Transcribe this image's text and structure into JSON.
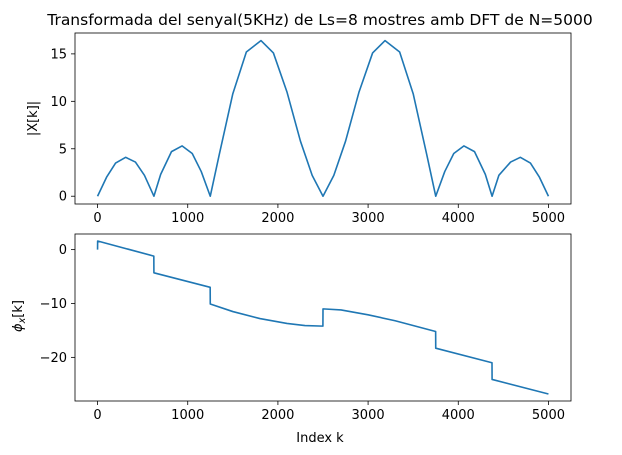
{
  "chart_data": [
    {
      "type": "line",
      "title": "Transformada del senyal(5KHz) de Ls=8 mostres amb DFT de N=5000",
      "xlabel": "",
      "ylabel": "|X[k]|",
      "xlim": [
        -250,
        5250
      ],
      "ylim": [
        -0.82,
        17.2
      ],
      "xticks": [
        0,
        1000,
        2000,
        3000,
        4000,
        5000
      ],
      "yticks": [
        0,
        5,
        10,
        15
      ],
      "grid": false,
      "color": "#1f77b4",
      "series": [
        {
          "x": [
            0,
            100,
            200,
            312,
            420,
            520,
            625,
            700,
            820,
            937,
            1050,
            1150,
            1250,
            1350,
            1500,
            1650,
            1812,
            1950,
            2100,
            2250,
            2380,
            2500,
            2620,
            2750,
            2900,
            3050,
            3188,
            3350,
            3500,
            3650,
            3750,
            3850,
            3950,
            4063,
            4180,
            4300,
            4375,
            4450,
            4580,
            4688,
            4800,
            4900,
            5000
          ],
          "y": [
            0.0,
            2.0,
            3.5,
            4.1,
            3.6,
            2.2,
            0.0,
            2.3,
            4.7,
            5.3,
            4.5,
            2.6,
            0.0,
            4.4,
            10.8,
            15.2,
            16.4,
            15.1,
            11.0,
            5.8,
            2.2,
            0.0,
            2.2,
            5.8,
            11.0,
            15.1,
            16.4,
            15.2,
            10.8,
            4.4,
            0.0,
            2.6,
            4.5,
            5.3,
            4.7,
            2.3,
            0.0,
            2.2,
            3.6,
            4.1,
            3.5,
            2.0,
            0.0
          ]
        }
      ]
    },
    {
      "type": "line",
      "title": "",
      "xlabel": "Index k",
      "ylabel": "ϕx[k]",
      "xlim": [
        -250,
        5250
      ],
      "ylim": [
        -28.1,
        2.9
      ],
      "xticks": [
        0,
        1000,
        2000,
        3000,
        4000,
        5000
      ],
      "yticks": [
        0,
        -10,
        -20
      ],
      "grid": false,
      "color": "#1f77b4",
      "series": [
        {
          "x": [
            0,
            1,
            624,
            625,
            1249,
            1250,
            1500,
            1800,
            2100,
            2300,
            2499,
            2500,
            2700,
            3000,
            3300,
            3749,
            3750,
            4374,
            4375,
            5000
          ],
          "y": [
            0.0,
            1.6,
            -1.2,
            -4.3,
            -7.0,
            -10.1,
            -11.5,
            -12.8,
            -13.7,
            -14.1,
            -14.2,
            -11.0,
            -11.2,
            -12.1,
            -13.2,
            -15.2,
            -18.3,
            -21.0,
            -24.1,
            -26.8
          ]
        }
      ]
    }
  ]
}
